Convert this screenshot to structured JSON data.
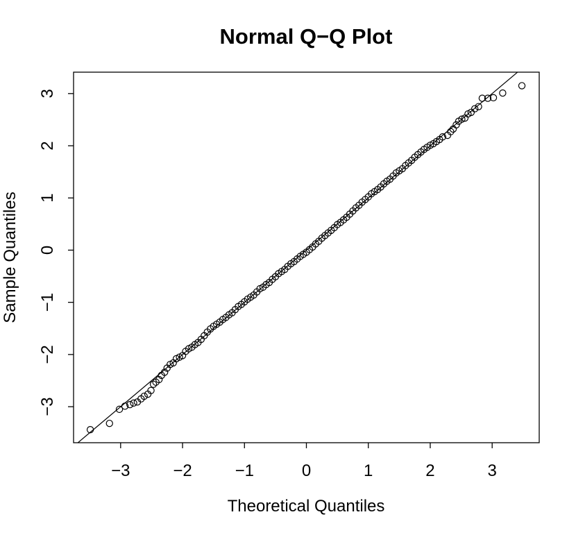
{
  "chart_data": {
    "type": "scatter",
    "title": "Normal Q−Q Plot",
    "xlabel": "Theoretical Quantiles",
    "ylabel": "Sample Quantiles",
    "xlim": [
      -3.76,
      3.76
    ],
    "ylim": [
      -3.69,
      3.41
    ],
    "xticks": [
      {
        "value": -3,
        "label": "−3"
      },
      {
        "value": -2,
        "label": "−2"
      },
      {
        "value": -1,
        "label": "−1"
      },
      0,
      1,
      2,
      3
    ],
    "yticks": [
      {
        "value": -3,
        "label": "−3"
      },
      {
        "value": -2,
        "label": "−2"
      },
      {
        "value": -1,
        "label": "−1"
      },
      0,
      1,
      2,
      3
    ],
    "color": "#000000",
    "qqline": {
      "intercept": 0.0,
      "slope": 1.0
    },
    "x": [
      -3.49,
      -3.18,
      -3.02,
      -2.93,
      -2.85,
      -2.79,
      -2.73,
      -2.67,
      -2.62,
      -2.56,
      -2.51,
      -2.47,
      -2.43,
      -2.38,
      -2.34,
      -2.29,
      -2.25,
      -2.2,
      -2.15,
      -2.1,
      -2.05,
      -2.0,
      -1.95,
      -1.9,
      -1.85,
      -1.8,
      -1.75,
      -1.7,
      -1.65,
      -1.6,
      -1.55,
      -1.5,
      -1.45,
      -1.4,
      -1.35,
      -1.3,
      -1.25,
      -1.2,
      -1.15,
      -1.1,
      -1.05,
      -1.0,
      -0.95,
      -0.9,
      -0.85,
      -0.8,
      -0.75,
      -0.7,
      -0.65,
      -0.6,
      -0.55,
      -0.5,
      -0.45,
      -0.4,
      -0.35,
      -0.3,
      -0.25,
      -0.2,
      -0.15,
      -0.1,
      -0.05,
      0,
      0.05,
      0.1,
      0.15,
      0.2,
      0.25,
      0.3,
      0.35,
      0.4,
      0.45,
      0.5,
      0.55,
      0.6,
      0.65,
      0.7,
      0.75,
      0.8,
      0.85,
      0.9,
      0.95,
      1.0,
      1.05,
      1.1,
      1.15,
      1.2,
      1.25,
      1.3,
      1.35,
      1.4,
      1.45,
      1.5,
      1.55,
      1.6,
      1.65,
      1.7,
      1.75,
      1.8,
      1.85,
      1.9,
      1.95,
      2.0,
      2.05,
      2.1,
      2.15,
      2.2,
      2.28,
      2.33,
      2.37,
      2.42,
      2.46,
      2.51,
      2.56,
      2.61,
      2.66,
      2.72,
      2.78,
      2.84,
      2.93,
      3.02,
      3.17,
      3.48
    ],
    "values": [
      -3.44,
      -3.32,
      -3.05,
      -2.99,
      -2.96,
      -2.93,
      -2.91,
      -2.85,
      -2.8,
      -2.76,
      -2.69,
      -2.57,
      -2.53,
      -2.48,
      -2.4,
      -2.34,
      -2.26,
      -2.19,
      -2.16,
      -2.08,
      -2.05,
      -2.02,
      -1.94,
      -1.89,
      -1.86,
      -1.81,
      -1.77,
      -1.71,
      -1.64,
      -1.57,
      -1.51,
      -1.46,
      -1.42,
      -1.38,
      -1.33,
      -1.29,
      -1.24,
      -1.2,
      -1.14,
      -1.08,
      -1.04,
      -0.99,
      -0.94,
      -0.9,
      -0.86,
      -0.8,
      -0.74,
      -0.71,
      -0.66,
      -0.62,
      -0.56,
      -0.51,
      -0.45,
      -0.41,
      -0.37,
      -0.31,
      -0.26,
      -0.22,
      -0.17,
      -0.12,
      -0.08,
      -0.04,
      0.01,
      0.06,
      0.12,
      0.17,
      0.23,
      0.28,
      0.33,
      0.38,
      0.43,
      0.49,
      0.53,
      0.58,
      0.63,
      0.69,
      0.75,
      0.81,
      0.86,
      0.92,
      0.97,
      1.02,
      1.08,
      1.12,
      1.16,
      1.21,
      1.27,
      1.32,
      1.36,
      1.42,
      1.48,
      1.52,
      1.56,
      1.62,
      1.67,
      1.72,
      1.78,
      1.83,
      1.88,
      1.93,
      1.97,
      2.01,
      2.04,
      2.08,
      2.12,
      2.17,
      2.2,
      2.27,
      2.32,
      2.4,
      2.47,
      2.51,
      2.53,
      2.61,
      2.64,
      2.71,
      2.75,
      2.91,
      2.91,
      2.92,
      3.01,
      3.15
    ]
  }
}
